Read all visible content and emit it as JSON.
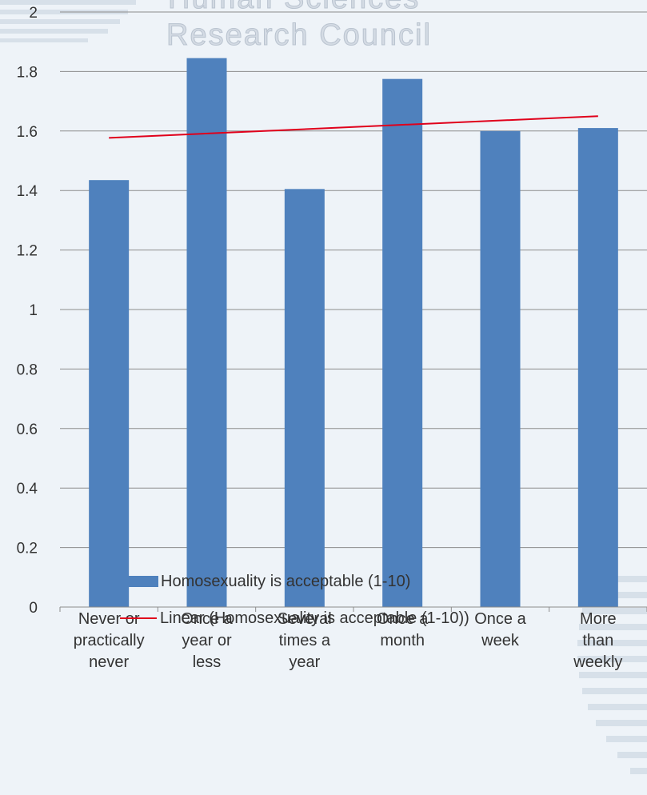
{
  "watermark": {
    "line1": "Human Sciences",
    "line2": "Research Council"
  },
  "chart_data": {
    "type": "bar",
    "categories": [
      [
        "Never or",
        "practically",
        "never"
      ],
      [
        "Once a",
        "year or",
        "less"
      ],
      [
        "Several",
        "times a",
        "year"
      ],
      [
        "Once a",
        "month"
      ],
      [
        "Once a",
        "week"
      ],
      [
        "More",
        "than",
        "weekly"
      ]
    ],
    "series": [
      {
        "name": "Homosexuality is acceptable (1-10)",
        "values": [
          1.435,
          1.845,
          1.405,
          1.775,
          1.6,
          1.61
        ],
        "color": "#4f81bd"
      }
    ],
    "trendline": {
      "name": "Linear (Homosexuality is acceptable (1-10))",
      "type": "linear",
      "start": 1.577,
      "end": 1.65,
      "color": "#e0001b"
    },
    "ylim": [
      0,
      2
    ],
    "yticks": [
      "0",
      "0.2",
      "0.4",
      "0.6",
      "0.8",
      "1",
      "1.2",
      "1.4",
      "1.6",
      "1.8",
      "2"
    ],
    "grid": true,
    "legend_position": "bottom",
    "title": "",
    "xlabel": "",
    "ylabel": ""
  },
  "legend": {
    "bar_label": "Homosexuality is acceptable (1-10)",
    "line_label": "Linear (Homosexuality is acceptable (1-10))"
  }
}
